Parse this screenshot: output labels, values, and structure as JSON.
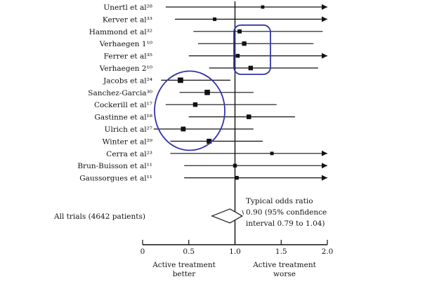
{
  "chart_data": {
    "type": "forest",
    "xlim": [
      0,
      2.0
    ],
    "null_line": 1.0,
    "ticks": [
      {
        "value": 0,
        "label": "0"
      },
      {
        "value": 0.5,
        "label": "0.5"
      },
      {
        "value": 1.0,
        "label": "1.0"
      },
      {
        "value": 1.5,
        "label": "1.5"
      },
      {
        "value": 2.0,
        "label": "2.0"
      }
    ],
    "studies": [
      {
        "label": "Unertl et al²⁸",
        "estimate": 1.3,
        "lower": 0.25,
        "upper": 2.0,
        "lower_arrow": false,
        "upper_arrow": true
      },
      {
        "label": "Kerver et al³³",
        "estimate": 0.78,
        "lower": 0.35,
        "upper": 2.0,
        "lower_arrow": false,
        "upper_arrow": true
      },
      {
        "label": "Hammond et al³²",
        "estimate": 1.05,
        "lower": 0.55,
        "upper": 1.95,
        "lower_arrow": false,
        "upper_arrow": false
      },
      {
        "label": "Verhaegen 1¹⁰",
        "estimate": 1.1,
        "lower": 0.6,
        "upper": 1.85,
        "lower_arrow": false,
        "upper_arrow": false
      },
      {
        "label": "Ferrer et al³⁵",
        "estimate": 1.03,
        "lower": 0.5,
        "upper": 2.0,
        "lower_arrow": false,
        "upper_arrow": true
      },
      {
        "label": "Verhaegen 2¹⁰",
        "estimate": 1.17,
        "lower": 0.72,
        "upper": 1.9,
        "lower_arrow": false,
        "upper_arrow": false
      },
      {
        "label": "Jacobs et al²⁴",
        "estimate": 0.41,
        "lower": 0.2,
        "upper": 0.95,
        "lower_arrow": false,
        "upper_arrow": false
      },
      {
        "label": "Sanchez-Garcia³⁰",
        "estimate": 0.7,
        "lower": 0.4,
        "upper": 1.2,
        "lower_arrow": false,
        "upper_arrow": false
      },
      {
        "label": "Cockerill et al¹⁷",
        "estimate": 0.57,
        "lower": 0.25,
        "upper": 1.45,
        "lower_arrow": false,
        "upper_arrow": false
      },
      {
        "label": "Gastinne et al¹⁸",
        "estimate": 1.15,
        "lower": 0.5,
        "upper": 1.65,
        "lower_arrow": false,
        "upper_arrow": false
      },
      {
        "label": "Ulrich et al²⁷",
        "estimate": 0.44,
        "lower": 0.12,
        "upper": 1.2,
        "lower_arrow": false,
        "upper_arrow": false
      },
      {
        "label": "Winter et al²⁹",
        "estimate": 0.72,
        "lower": 0.3,
        "upper": 1.3,
        "lower_arrow": false,
        "upper_arrow": false
      },
      {
        "label": "Cerra et al²³",
        "estimate": 1.4,
        "lower": 0.3,
        "upper": 2.0,
        "lower_arrow": false,
        "upper_arrow": true
      },
      {
        "label": "Brun-Buisson et al¹¹",
        "estimate": 1.0,
        "lower": 0.45,
        "upper": 2.0,
        "lower_arrow": false,
        "upper_arrow": true
      },
      {
        "label": "Gaussorgues et al¹¹",
        "estimate": 1.02,
        "lower": 0.45,
        "upper": 2.0,
        "lower_arrow": false,
        "upper_arrow": true
      }
    ],
    "summary": {
      "label": "All trials (4642 patients)",
      "estimate": 0.9,
      "lower": 0.79,
      "upper": 1.04,
      "note_lines": [
        "Typical odds ratio",
        "0.90 (95% confidence",
        "interval 0.79 to 1.04)"
      ]
    },
    "x_captions": {
      "left": [
        "Active treatment",
        "better"
      ],
      "right": [
        "Active treatment",
        "worse"
      ]
    },
    "highlight_groups": [
      {
        "from": 2,
        "to": 5,
        "color": "#3333aa"
      },
      {
        "from": 6,
        "to": 11,
        "color": "#3333aa"
      }
    ]
  }
}
